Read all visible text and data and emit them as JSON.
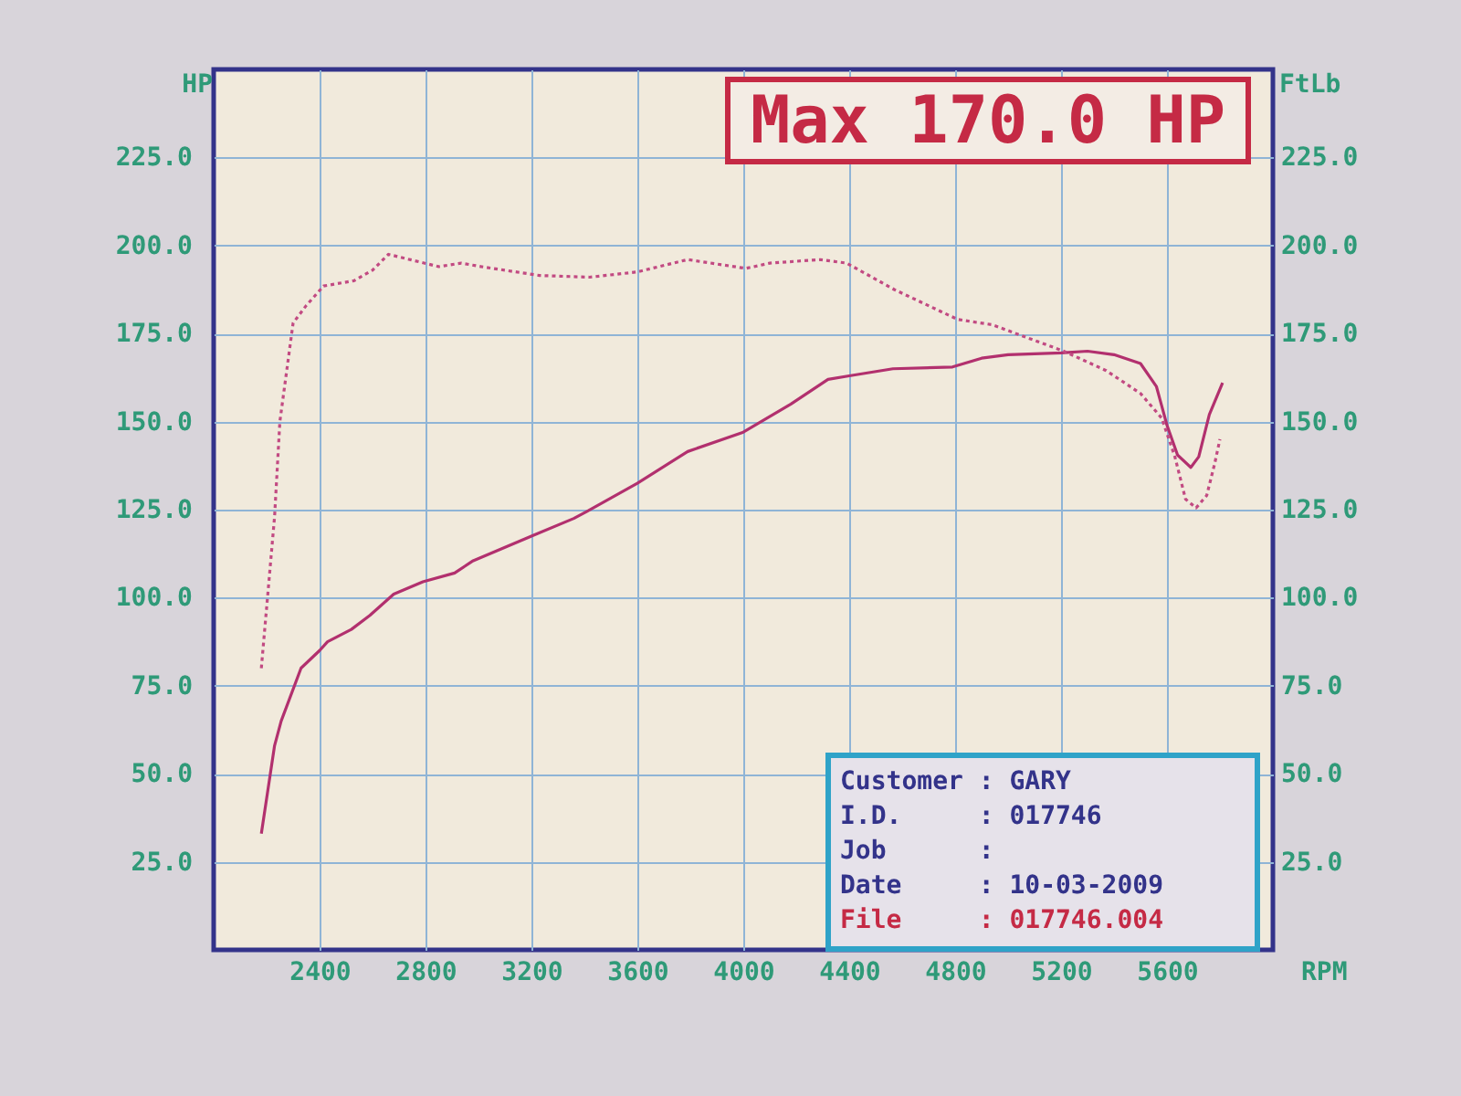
{
  "chart_data": {
    "type": "line",
    "title": "Max 170.0 HP",
    "xlabel": "RPM",
    "ylabel": "HP",
    "y2label": "FtLb",
    "xlim": [
      2000,
      6000
    ],
    "xticks": [
      2400,
      2800,
      3200,
      3600,
      4000,
      4400,
      4800,
      5200,
      5600
    ],
    "ylim": [
      0,
      250
    ],
    "yticks": [
      {
        "value": 25,
        "label": "25.0"
      },
      {
        "value": 50,
        "label": "50.0"
      },
      {
        "value": 75,
        "label": "75.0"
      },
      {
        "value": 100,
        "label": "100.0"
      },
      {
        "value": 125,
        "label": "125.0"
      },
      {
        "value": 150,
        "label": "150.0"
      },
      {
        "value": 175,
        "label": "175.0"
      },
      {
        "value": 200,
        "label": "200.0"
      },
      {
        "value": 225,
        "label": "225.0"
      }
    ],
    "y2lim": [
      0,
      250
    ],
    "y2ticks": [
      {
        "value": 25,
        "label": "25.0"
      },
      {
        "value": 50,
        "label": "50.0"
      },
      {
        "value": 75,
        "label": "75.0"
      },
      {
        "value": 100,
        "label": "100.0"
      },
      {
        "value": 125,
        "label": "125.0"
      },
      {
        "value": 150,
        "label": "150.0"
      },
      {
        "value": 175,
        "label": "175.0"
      },
      {
        "value": 200,
        "label": "200.0"
      },
      {
        "value": 225,
        "label": "225.0"
      }
    ],
    "grid": true,
    "series": [
      {
        "color": "#b2306e",
        "line_style": "solid",
        "x": [
          2180,
          2230,
          2255,
          2330,
          2400,
          2430,
          2520,
          2590,
          2680,
          2790,
          2910,
          2980,
          3090,
          3200,
          3360,
          3410,
          3600,
          3790,
          4000,
          4180,
          4320,
          4400,
          4565,
          4790,
          4900,
          5000,
          5200,
          5300,
          5400,
          5500,
          5560,
          5600,
          5640,
          5690,
          5720,
          5760,
          5810
        ],
        "values": [
          33,
          58,
          65,
          80,
          85,
          87.5,
          91,
          95,
          101,
          104.5,
          107,
          110.5,
          114,
          117.5,
          122.5,
          124.5,
          132.5,
          141.5,
          147,
          155,
          162,
          163,
          165,
          165.5,
          168,
          169,
          169.5,
          170,
          169,
          166.5,
          160,
          149,
          140.5,
          137,
          140,
          152,
          161
        ]
      },
      {
        "color": "#c24a82",
        "line_style": "dotted",
        "axis": "y2",
        "x": [
          2180,
          2230,
          2250,
          2300,
          2350,
          2415,
          2530,
          2600,
          2660,
          2850,
          2935,
          3010,
          3230,
          3420,
          3600,
          3790,
          4010,
          4100,
          4290,
          4390,
          4570,
          4810,
          4940,
          5210,
          5370,
          5500,
          5580,
          5630,
          5670,
          5710,
          5750,
          5780,
          5800
        ],
        "values": [
          80,
          123,
          150,
          178,
          183,
          188.5,
          190,
          193,
          197.5,
          194,
          195,
          194,
          191.5,
          191,
          192.5,
          196,
          193.5,
          195,
          196,
          195,
          187.5,
          179,
          177.5,
          170,
          164.5,
          158,
          151,
          140,
          128,
          125.5,
          129,
          138,
          145
        ]
      }
    ],
    "annotations": [
      "Customer : GARY",
      "I.D.     : 017746",
      "Job      :",
      "Date     : 10-03-2009",
      "File     : 017746.004"
    ]
  }
}
